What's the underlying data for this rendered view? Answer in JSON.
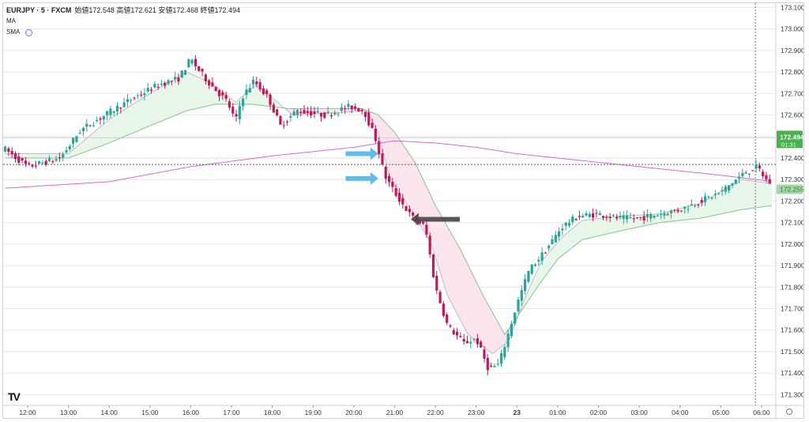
{
  "legend": {
    "symbol": "EURJPY · 5 · FXCM",
    "ohlc": "始値172.548 高値172.621 安値172.468 終値172.494",
    "ind1": "MA",
    "ind2": "SMA"
  },
  "logo_text": "TV",
  "price_tag": {
    "price": "172.494",
    "countdown": "01:31",
    "color": "#4caf50"
  },
  "ma_tag": {
    "price": "172.255",
    "color": "#a5d6a7"
  },
  "colors": {
    "up": "#26a69a",
    "down": "#c2185b",
    "grid": "#e6e6e6",
    "ma_fast": "#9e9e9e",
    "ma_slow": "#81c784",
    "sma": "#d36ad6",
    "fill_up": "#e8f5e9",
    "fill_down": "#fce4ec",
    "arrow_blue": "#4fb3e8",
    "arrow_dark": "#444444"
  },
  "chart_data": {
    "type": "candlestick",
    "symbol": "EURJPY",
    "interval": "5",
    "y_axis": {
      "range": [
        171.25,
        173.12
      ],
      "ticks": [
        "173.100",
        "173.000",
        "172.900",
        "172.800",
        "172.700",
        "172.600",
        "172.500",
        "172.400",
        "172.300",
        "172.200",
        "172.100",
        "172.000",
        "171.900",
        "171.800",
        "171.700",
        "171.600",
        "171.500",
        "171.400",
        "171.300"
      ]
    },
    "x_axis": {
      "ticks": [
        "12:00",
        "13:00",
        "14:00",
        "15:00",
        "16:00",
        "17:00",
        "18:00",
        "19:00",
        "20:00",
        "21:00",
        "22:00",
        "23:00",
        "23",
        "01:00",
        "02:00",
        "03:00",
        "04:00",
        "05:00",
        "06:00"
      ],
      "time_hours": [
        0,
        1,
        2,
        3,
        4,
        5,
        6,
        7,
        8,
        9,
        10,
        11,
        12,
        13,
        14,
        15,
        16,
        17,
        18
      ]
    },
    "time_range": [
      -0.6,
      18.35
    ],
    "anchors": [
      [
        -0.55,
        172.44
      ],
      [
        0.0,
        172.36
      ],
      [
        0.8,
        172.4
      ],
      [
        1.3,
        172.53
      ],
      [
        1.9,
        172.6
      ],
      [
        2.6,
        172.68
      ],
      [
        3.2,
        172.74
      ],
      [
        3.7,
        172.77
      ],
      [
        4.0,
        172.86
      ],
      [
        4.15,
        172.82
      ],
      [
        4.4,
        172.76
      ],
      [
        4.9,
        172.66
      ],
      [
        5.1,
        172.57
      ],
      [
        5.25,
        172.68
      ],
      [
        5.55,
        172.76
      ],
      [
        5.9,
        172.68
      ],
      [
        6.2,
        172.55
      ],
      [
        6.6,
        172.62
      ],
      [
        7.3,
        172.6
      ],
      [
        7.9,
        172.64
      ],
      [
        8.25,
        172.62
      ],
      [
        8.55,
        172.48
      ],
      [
        8.75,
        172.32
      ],
      [
        9.0,
        172.24
      ],
      [
        9.4,
        172.13
      ],
      [
        9.75,
        172.08
      ],
      [
        10.0,
        171.8
      ],
      [
        10.3,
        171.62
      ],
      [
        10.7,
        171.54
      ],
      [
        11.0,
        171.56
      ],
      [
        11.3,
        171.42
      ],
      [
        11.55,
        171.44
      ],
      [
        11.75,
        171.56
      ],
      [
        12.0,
        171.72
      ],
      [
        12.3,
        171.88
      ],
      [
        12.7,
        171.97
      ],
      [
        13.1,
        172.08
      ],
      [
        13.5,
        172.13
      ],
      [
        14.0,
        172.14
      ],
      [
        14.5,
        172.12
      ],
      [
        15.0,
        172.12
      ],
      [
        15.5,
        172.14
      ],
      [
        16.0,
        172.16
      ],
      [
        16.5,
        172.2
      ],
      [
        17.0,
        172.24
      ],
      [
        17.5,
        172.32
      ],
      [
        17.9,
        172.36
      ],
      [
        18.1,
        172.3
      ],
      [
        18.3,
        172.27
      ]
    ],
    "ma_fast_anchors": [
      [
        -0.55,
        172.42
      ],
      [
        1.0,
        172.42
      ],
      [
        2.0,
        172.58
      ],
      [
        3.0,
        172.7
      ],
      [
        3.9,
        172.8
      ],
      [
        4.5,
        172.75
      ],
      [
        5.1,
        172.66
      ],
      [
        5.6,
        172.74
      ],
      [
        6.0,
        172.68
      ],
      [
        6.5,
        172.6
      ],
      [
        7.5,
        172.61
      ],
      [
        8.3,
        172.62
      ],
      [
        8.6,
        172.52
      ],
      [
        8.9,
        172.3
      ],
      [
        9.5,
        172.13
      ],
      [
        9.9,
        172.0
      ],
      [
        10.3,
        171.76
      ],
      [
        10.8,
        171.58
      ],
      [
        11.4,
        171.49
      ],
      [
        11.8,
        171.55
      ],
      [
        12.2,
        171.75
      ],
      [
        12.6,
        171.92
      ],
      [
        13.1,
        172.03
      ],
      [
        13.6,
        172.11
      ],
      [
        14.5,
        172.13
      ],
      [
        15.5,
        172.14
      ],
      [
        16.5,
        172.19
      ],
      [
        17.5,
        172.3
      ],
      [
        18.3,
        172.28
      ]
    ],
    "ma_slow_anchors": [
      [
        -0.55,
        172.4
      ],
      [
        1.0,
        172.4
      ],
      [
        2.0,
        172.47
      ],
      [
        3.0,
        172.55
      ],
      [
        3.9,
        172.62
      ],
      [
        4.6,
        172.65
      ],
      [
        5.5,
        172.65
      ],
      [
        6.4,
        172.63
      ],
      [
        7.5,
        172.63
      ],
      [
        8.2,
        172.63
      ],
      [
        8.6,
        172.6
      ],
      [
        9.0,
        172.52
      ],
      [
        9.5,
        172.38
      ],
      [
        10.0,
        172.18
      ],
      [
        10.6,
        171.98
      ],
      [
        11.2,
        171.75
      ],
      [
        11.7,
        171.58
      ],
      [
        12.0,
        171.66
      ],
      [
        12.5,
        171.8
      ],
      [
        13.0,
        171.93
      ],
      [
        13.6,
        172.02
      ],
      [
        14.5,
        172.06
      ],
      [
        15.5,
        172.1
      ],
      [
        16.5,
        172.12
      ],
      [
        17.5,
        172.16
      ],
      [
        18.3,
        172.18
      ]
    ],
    "sma_anchors": [
      [
        -0.55,
        172.26
      ],
      [
        2.0,
        172.29
      ],
      [
        4.0,
        172.36
      ],
      [
        6.0,
        172.41
      ],
      [
        7.0,
        172.43
      ],
      [
        8.0,
        172.45
      ],
      [
        9.0,
        172.48
      ],
      [
        10.0,
        172.47
      ],
      [
        11.0,
        172.45
      ],
      [
        12.0,
        172.42
      ],
      [
        13.0,
        172.4
      ],
      [
        14.0,
        172.38
      ],
      [
        15.0,
        172.36
      ],
      [
        16.0,
        172.34
      ],
      [
        17.0,
        172.32
      ],
      [
        18.3,
        172.29
      ]
    ],
    "hlines": [
      172.494,
      172.37
    ],
    "vline_time": 17.85,
    "annotations": [
      {
        "type": "arrow",
        "color": "blue",
        "from": [
          7.8,
          172.42
        ],
        "to": [
          8.6,
          172.42
        ]
      },
      {
        "type": "arrow",
        "color": "blue",
        "from": [
          7.8,
          172.305
        ],
        "to": [
          8.6,
          172.305
        ]
      },
      {
        "type": "arrow",
        "color": "dark",
        "from": [
          10.6,
          172.115
        ],
        "to": [
          9.4,
          172.115
        ]
      }
    ]
  }
}
